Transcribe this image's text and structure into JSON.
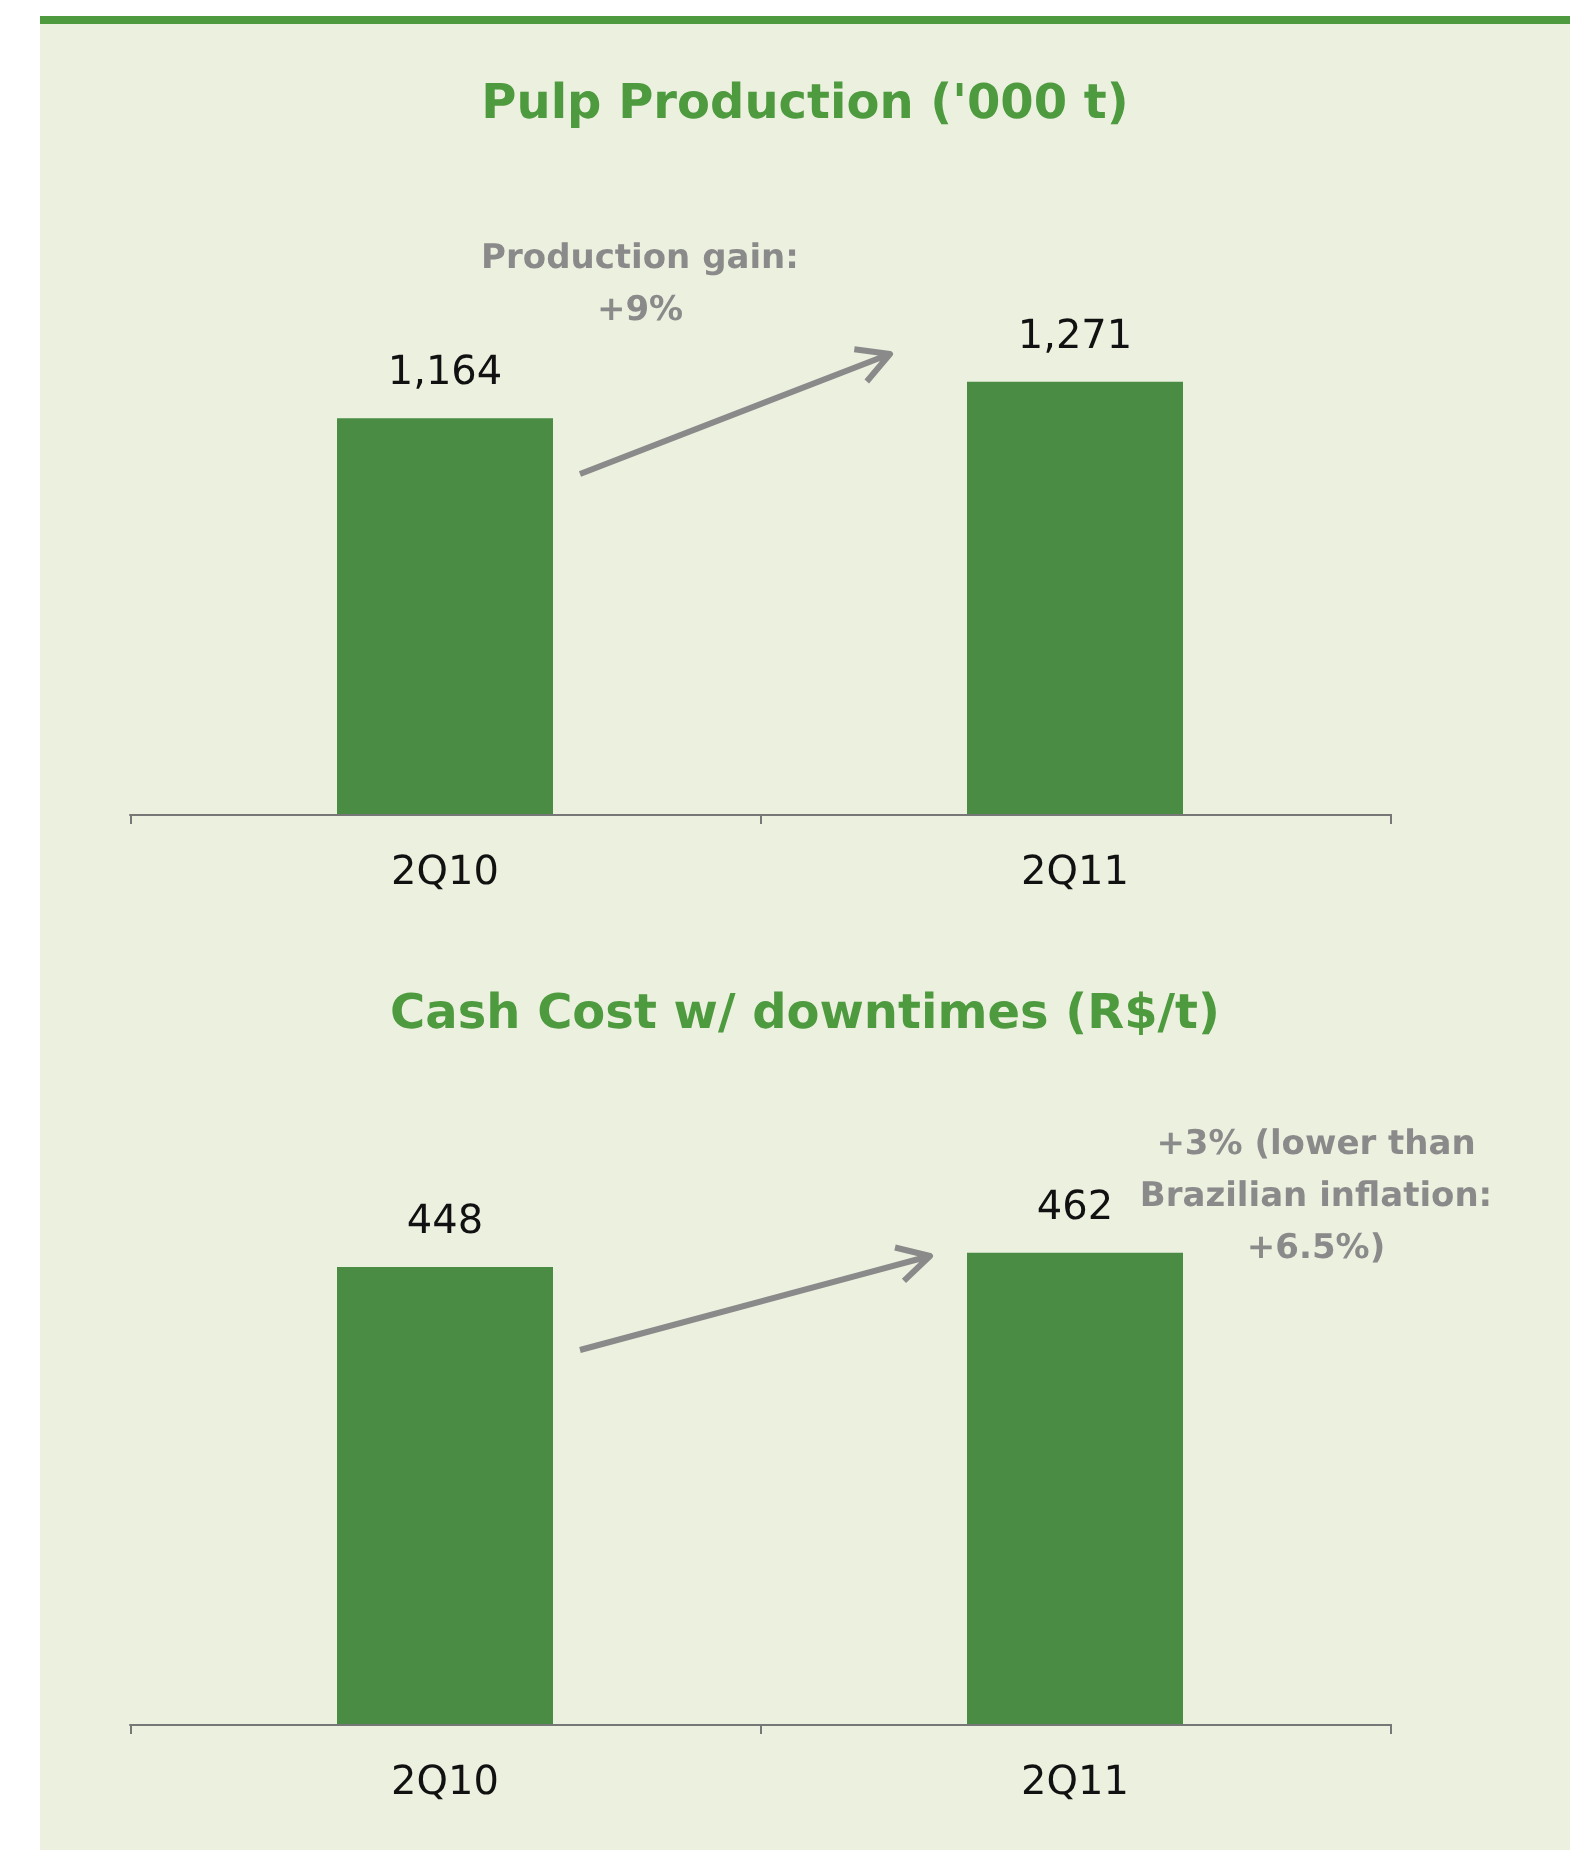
{
  "chart_data": [
    {
      "type": "bar",
      "title": "Pulp Production ('000 t)",
      "categories": [
        "2Q10",
        "2Q11"
      ],
      "values": [
        1164,
        1271
      ],
      "value_labels": [
        "1,164",
        "1,271"
      ],
      "color": "#4a8c44",
      "tick_labels": "x",
      "annotations": [
        "Production gain:\n+9%"
      ]
    },
    {
      "type": "bar",
      "title": "Cash Cost w/ downtimes (R$/t)",
      "categories": [
        "2Q10",
        "2Q11"
      ],
      "values": [
        448,
        462
      ],
      "color": "#4a8c44",
      "data_labels": true,
      "tick_labels": "x",
      "annotations": [
        "+3% (lower than\nBrazilian inflation:\n+6.5%)"
      ]
    }
  ]
}
